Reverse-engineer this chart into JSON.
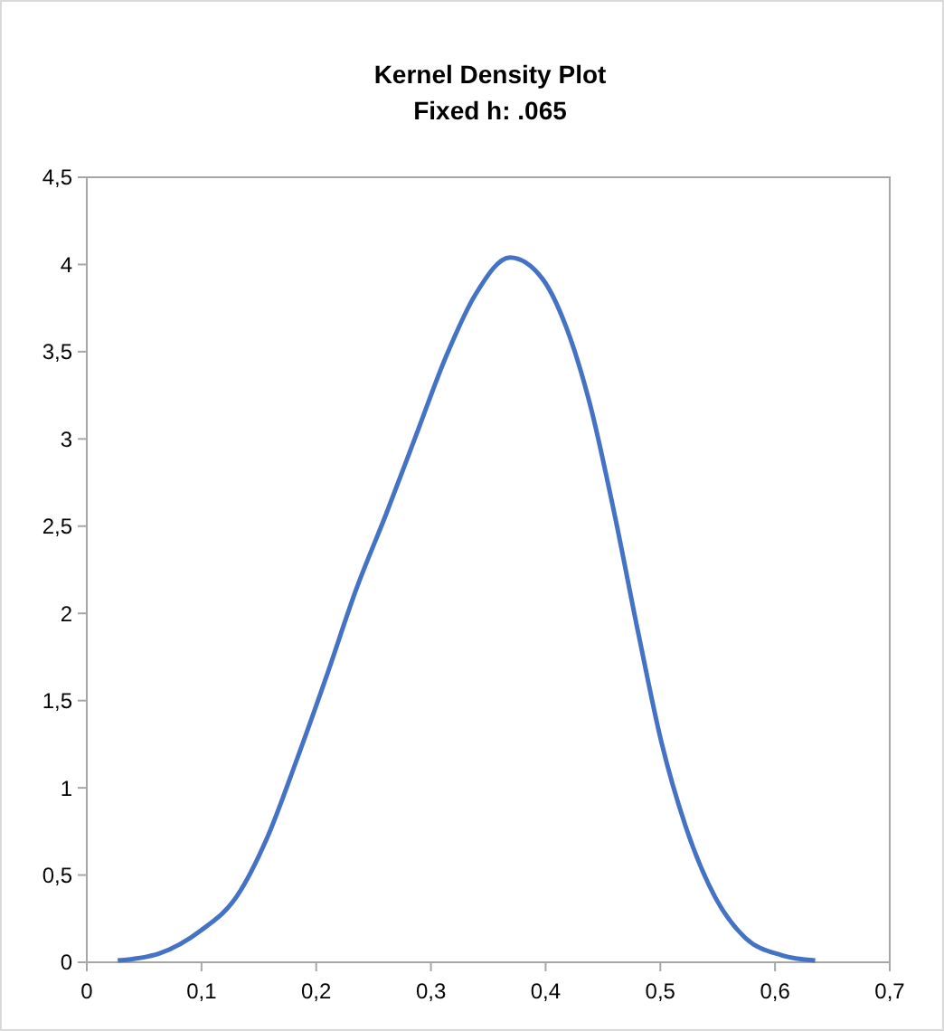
{
  "chart_data": {
    "type": "line",
    "title": "Kernel Density Plot",
    "subtitle": "Fixed h: .065",
    "x": [
      0.027,
      0.063,
      0.099,
      0.131,
      0.157,
      0.183,
      0.209,
      0.235,
      0.261,
      0.287,
      0.313,
      0.339,
      0.369,
      0.397,
      0.418,
      0.439,
      0.46,
      0.481,
      0.501,
      0.522,
      0.548,
      0.574,
      0.606,
      0.635
    ],
    "series": [
      {
        "color": "#4472c4",
        "values": [
          0.01,
          0.05,
          0.18,
          0.38,
          0.71,
          1.16,
          1.64,
          2.14,
          2.57,
          3.02,
          3.47,
          3.83,
          4.04,
          3.92,
          3.64,
          3.19,
          2.57,
          1.88,
          1.26,
          0.78,
          0.37,
          0.14,
          0.04,
          0.01
        ]
      }
    ],
    "xlim": [
      0,
      0.7
    ],
    "ylim": [
      0,
      4.5
    ],
    "xticks": [
      0,
      {
        "value": 0.1,
        "label": "0,1"
      },
      {
        "value": 0.2,
        "label": "0,2"
      },
      {
        "value": 0.3,
        "label": "0,3"
      },
      {
        "value": 0.4,
        "label": "0,4"
      },
      {
        "value": 0.5,
        "label": "0,5"
      },
      {
        "value": 0.6,
        "label": "0,6"
      },
      {
        "value": 0.7,
        "label": "0,7"
      }
    ],
    "yticks": [
      0,
      {
        "value": 0.5,
        "label": "0,5"
      },
      1,
      {
        "value": 1.5,
        "label": "1,5"
      },
      2,
      {
        "value": 2.5,
        "label": "2,5"
      },
      3,
      {
        "value": 3.5,
        "label": "3,5"
      },
      4,
      {
        "value": 4.5,
        "label": "4,5"
      }
    ],
    "grid": false,
    "marker": "none",
    "line_style": "solid"
  }
}
